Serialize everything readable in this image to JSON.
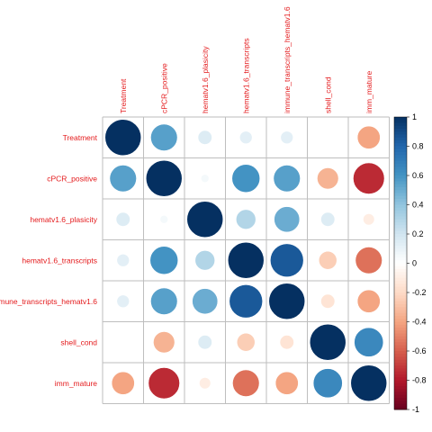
{
  "chart_data": {
    "type": "heatmap",
    "variables": [
      "Treatment",
      "cPCR_positive",
      "hematv1.6_plasicity",
      "hematv1.6_transcripts",
      "immune_transcripts_hematv1.6",
      "shell_cond",
      "imm_mature"
    ],
    "matrix": [
      [
        1.0,
        0.55,
        0.15,
        0.12,
        0.12,
        0.0,
        -0.4
      ],
      [
        0.55,
        1.0,
        0.05,
        0.6,
        0.55,
        -0.35,
        -0.75
      ],
      [
        0.15,
        0.05,
        1.0,
        0.3,
        0.5,
        0.15,
        -0.1
      ],
      [
        0.12,
        0.6,
        0.3,
        1.0,
        0.85,
        -0.25,
        -0.55
      ],
      [
        0.12,
        0.55,
        0.5,
        0.85,
        1.0,
        -0.15,
        -0.4
      ],
      [
        0.0,
        -0.35,
        0.15,
        -0.25,
        -0.15,
        1.0,
        0.65
      ],
      [
        -0.4,
        -0.75,
        -0.1,
        -0.55,
        -0.4,
        0.65,
        1.0
      ]
    ],
    "colorbar": {
      "ticks": [
        "1",
        "0.8",
        "0.6",
        "0.4",
        "0.2",
        "0",
        "-0.2",
        "-0.4",
        "-0.6",
        "-0.8",
        "-1"
      ],
      "range": [
        -1,
        1
      ]
    },
    "colors": {
      "negative_end": "#67001F",
      "neutral": "#FFFFFF",
      "positive_end": "#053061",
      "label": "#E41A1C",
      "grid": "#BEBEBE"
    }
  }
}
